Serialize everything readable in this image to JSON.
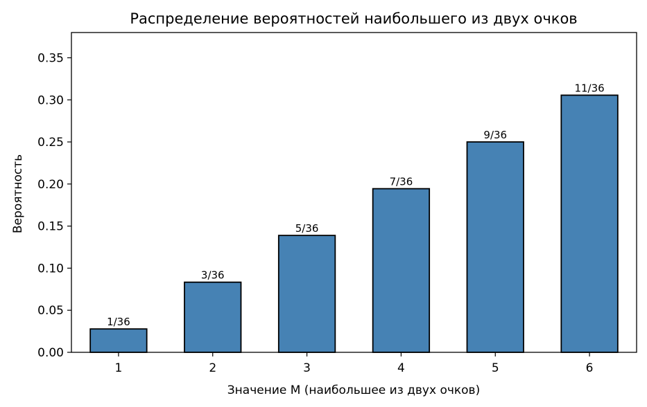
{
  "chart_data": {
    "type": "bar",
    "title": "Распределение вероятностей наибольшего из двух очков",
    "xlabel": "Значение M (наибольшее из двух очков)",
    "ylabel": "Вероятность",
    "categories": [
      "1",
      "2",
      "3",
      "4",
      "5",
      "6"
    ],
    "values": [
      0.02778,
      0.08333,
      0.13889,
      0.19444,
      0.25,
      0.30556
    ],
    "data_labels": [
      "1/36",
      "3/36",
      "5/36",
      "7/36",
      "9/36",
      "11/36"
    ],
    "ylim": [
      0,
      0.38
    ],
    "yticks": [
      "0.00",
      "0.05",
      "0.10",
      "0.15",
      "0.20",
      "0.25",
      "0.30",
      "0.35"
    ],
    "grid": false,
    "bar_color": "#4682b4",
    "edge_color": "#000000"
  }
}
